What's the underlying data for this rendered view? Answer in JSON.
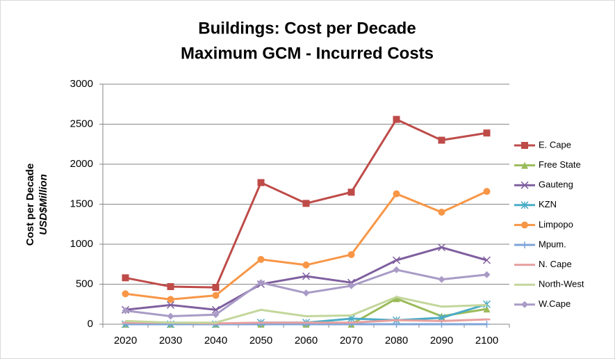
{
  "chart_data": {
    "type": "line",
    "title": [
      "Buildings: Cost per Decade",
      "Maximum GCM - Incurred Costs"
    ],
    "y_label": [
      "Cost per Decade",
      "USD$Million"
    ],
    "categories": [
      "2020",
      "2030",
      "2040",
      "2050",
      "2060",
      "2070",
      "2080",
      "2090",
      "2100"
    ],
    "ylim": [
      0,
      3000
    ],
    "yticks": [
      0,
      500,
      1000,
      1500,
      2000,
      2500,
      3000
    ],
    "grid": true,
    "legend": "right",
    "series": [
      {
        "name": "E. Cape",
        "color": "#be4b48",
        "marker": "square",
        "values": [
          580,
          470,
          460,
          1770,
          1510,
          1650,
          2560,
          2300,
          2390
        ]
      },
      {
        "name": "Free State",
        "color": "#9bbb59",
        "marker": "triangle",
        "values": [
          0,
          0,
          0,
          0,
          0,
          0,
          320,
          100,
          190
        ]
      },
      {
        "name": "Gauteng",
        "color": "#7f5f9f",
        "marker": "x",
        "values": [
          180,
          240,
          180,
          500,
          600,
          520,
          800,
          960,
          800
        ]
      },
      {
        "name": "KZN",
        "color": "#4bacc6",
        "marker": "star",
        "values": [
          0,
          0,
          0,
          20,
          20,
          70,
          50,
          80,
          250
        ]
      },
      {
        "name": "Limpopo",
        "color": "#f79646",
        "marker": "circle",
        "values": [
          380,
          310,
          360,
          810,
          740,
          870,
          1630,
          1400,
          1660
        ]
      },
      {
        "name": "Mpum.",
        "color": "#7ea4d8",
        "marker": "plus",
        "values": [
          0,
          0,
          0,
          0,
          0,
          0,
          0,
          0,
          0
        ]
      },
      {
        "name": "N. Cape",
        "color": "#e6a0a0",
        "marker": "dash",
        "values": [
          20,
          20,
          10,
          20,
          20,
          20,
          50,
          40,
          60
        ]
      },
      {
        "name": "North-West",
        "color": "#c3d69b",
        "marker": "none",
        "values": [
          40,
          20,
          20,
          180,
          100,
          110,
          340,
          220,
          240
        ]
      },
      {
        "name": "W.Cape",
        "color": "#a99bc6",
        "marker": "diamond",
        "values": [
          170,
          100,
          120,
          520,
          390,
          480,
          680,
          560,
          620
        ]
      }
    ]
  }
}
